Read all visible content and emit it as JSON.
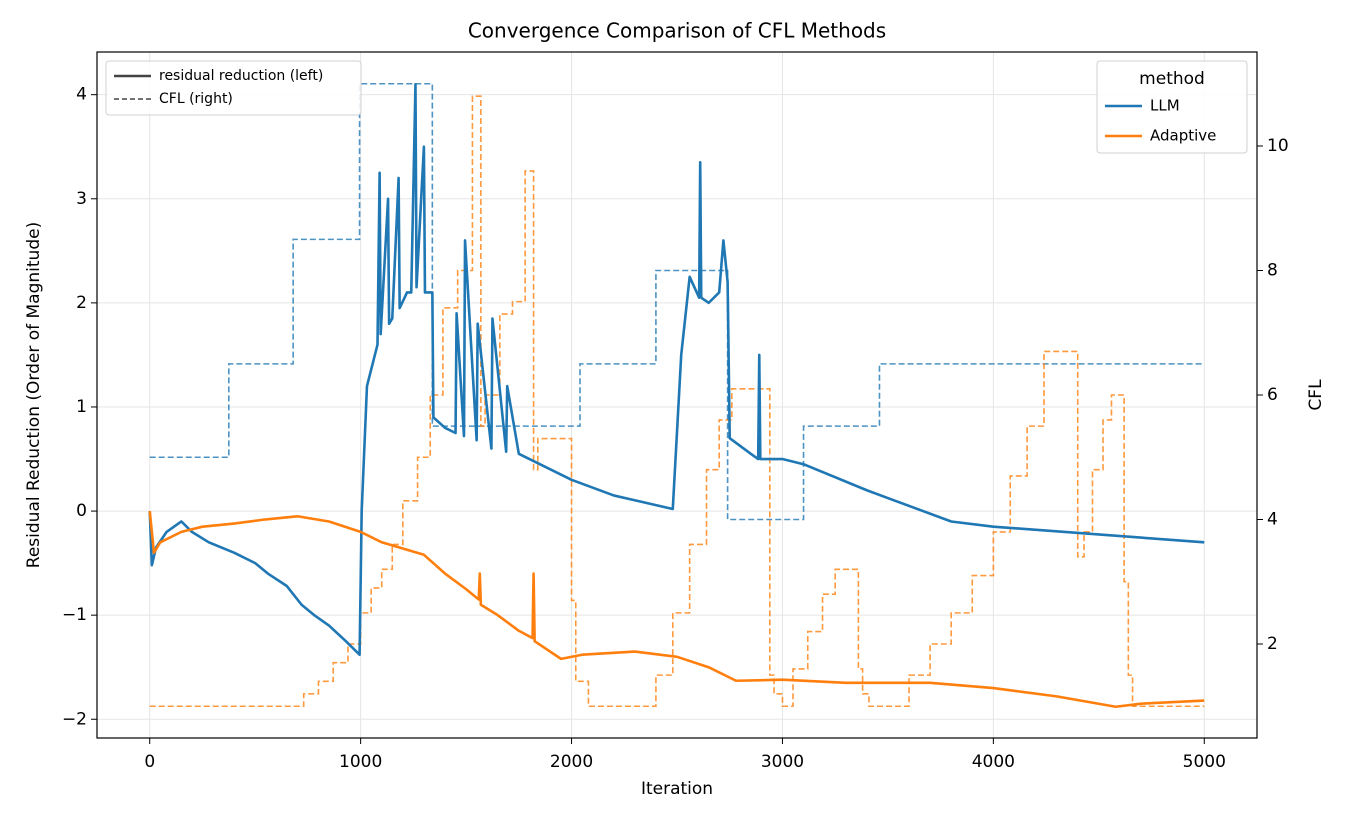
{
  "chart_data": {
    "type": "line",
    "title": "Convergence Comparison of CFL Methods",
    "x_label": "Iteration",
    "y_label": "Residual Reduction (Order of Magnitude)",
    "y2_label": "CFL",
    "xlim": [
      -250,
      5250
    ],
    "ylim": [
      -2.18,
      4.41
    ],
    "y2lim": [
      0.49,
      11.51
    ],
    "xticks": [
      0,
      1000,
      2000,
      3000,
      4000,
      5000
    ],
    "yticks": [
      {
        "value": -2,
        "label": "−2"
      },
      {
        "value": -1,
        "label": "−1"
      },
      0,
      1,
      2,
      3,
      4
    ],
    "y2ticks": [
      2,
      4,
      6,
      8,
      10
    ],
    "grid": true,
    "legend_title": "method",
    "legend_position": "upper-right",
    "style_legend_position": "upper-left",
    "style_legend": [
      {
        "label": "residual reduction (left)",
        "dashed": false
      },
      {
        "label": "CFL (right)",
        "dashed": true
      }
    ],
    "series": [
      {
        "name": "LLM",
        "color": "#1f77b4",
        "x": [
          0,
          10,
          30,
          80,
          150,
          200,
          280,
          400,
          500,
          560,
          650,
          720,
          780,
          850,
          930,
          995,
          1005,
          1030,
          1080,
          1090,
          1095,
          1130,
          1135,
          1150,
          1180,
          1185,
          1220,
          1240,
          1260,
          1265,
          1300,
          1305,
          1340,
          1345,
          1400,
          1450,
          1455,
          1490,
          1495,
          1550,
          1555,
          1620,
          1625,
          1690,
          1695,
          1750,
          2000,
          2200,
          2480,
          2520,
          2560,
          2605,
          2610,
          2615,
          2650,
          2700,
          2720,
          2740,
          2750,
          2850,
          2885,
          2890,
          2895,
          3000,
          3100,
          3400,
          3800,
          4000,
          5000
        ],
        "values": [
          0,
          -0.52,
          -0.35,
          -0.2,
          -0.1,
          -0.2,
          -0.3,
          -0.4,
          -0.5,
          -0.6,
          -0.72,
          -0.9,
          -1.0,
          -1.1,
          -1.25,
          -1.38,
          0,
          1.2,
          1.6,
          3.25,
          1.7,
          3.0,
          1.8,
          1.85,
          3.2,
          1.95,
          2.1,
          2.1,
          4.1,
          2.15,
          3.5,
          2.1,
          2.1,
          0.9,
          0.8,
          0.75,
          1.9,
          0.72,
          2.6,
          0.68,
          1.8,
          0.6,
          1.85,
          0.57,
          1.2,
          0.55,
          0.3,
          0.15,
          0.02,
          1.5,
          2.25,
          2.05,
          3.35,
          2.05,
          2.0,
          2.1,
          2.6,
          2.2,
          0.7,
          0.55,
          0.5,
          1.5,
          0.5,
          0.5,
          0.45,
          0.2,
          -0.1,
          -0.15,
          -0.3
        ],
        "cfl_x": [
          0,
          375,
          680,
          995,
          1340,
          2040,
          2400,
          2740,
          3100,
          3460,
          5000
        ],
        "cfl": [
          5,
          6.5,
          8.5,
          11,
          5.5,
          6.5,
          8,
          4,
          5.5,
          6.5,
          6.5
        ]
      },
      {
        "name": "Adaptive",
        "color": "#ff7f0e",
        "x": [
          0,
          20,
          50,
          150,
          250,
          400,
          550,
          700,
          850,
          1000,
          1100,
          1300,
          1400,
          1500,
          1560,
          1565,
          1570,
          1650,
          1750,
          1815,
          1820,
          1825,
          1950,
          2050,
          2300,
          2500,
          2650,
          2780,
          3000,
          3300,
          3700,
          4000,
          4300,
          4580,
          4700,
          5000
        ],
        "values": [
          0,
          -0.4,
          -0.3,
          -0.2,
          -0.15,
          -0.12,
          -0.08,
          -0.05,
          -0.1,
          -0.2,
          -0.3,
          -0.42,
          -0.6,
          -0.75,
          -0.85,
          -0.6,
          -0.9,
          -1.0,
          -1.15,
          -1.22,
          -0.6,
          -1.25,
          -1.42,
          -1.38,
          -1.35,
          -1.4,
          -1.5,
          -1.63,
          -1.62,
          -1.65,
          -1.65,
          -1.7,
          -1.78,
          -1.88,
          -1.85,
          -1.82
        ],
        "cfl_x": [
          0,
          730,
          800,
          870,
          940,
          1000,
          1050,
          1100,
          1150,
          1200,
          1270,
          1330,
          1390,
          1460,
          1530,
          1570,
          1590,
          1660,
          1720,
          1780,
          1820,
          1840,
          2000,
          2020,
          2080,
          2400,
          2480,
          2560,
          2640,
          2700,
          2760,
          2940,
          2960,
          3000,
          3050,
          3120,
          3190,
          3250,
          3360,
          3380,
          3410,
          3600,
          3700,
          3800,
          3900,
          4000,
          4080,
          4160,
          4240,
          4400,
          4430,
          4470,
          4520,
          4560,
          4620,
          4640,
          4660,
          5000
        ],
        "cfl": [
          1,
          1.2,
          1.4,
          1.7,
          2.0,
          2.5,
          2.9,
          3.2,
          3.6,
          4.3,
          5.0,
          6.0,
          7.4,
          8.0,
          10.8,
          5.5,
          6.0,
          7.3,
          7.5,
          9.6,
          4.8,
          5.3,
          2.7,
          1.4,
          1.0,
          1.5,
          2.5,
          3.6,
          4.8,
          5.6,
          6.1,
          1.5,
          1.2,
          1.0,
          1.6,
          2.2,
          2.8,
          3.2,
          1.6,
          1.2,
          1.0,
          1.5,
          2.0,
          2.5,
          3.1,
          3.8,
          4.7,
          5.5,
          6.7,
          3.4,
          3.8,
          4.8,
          5.6,
          6.0,
          3.0,
          1.5,
          1.0,
          1.0
        ]
      }
    ]
  }
}
